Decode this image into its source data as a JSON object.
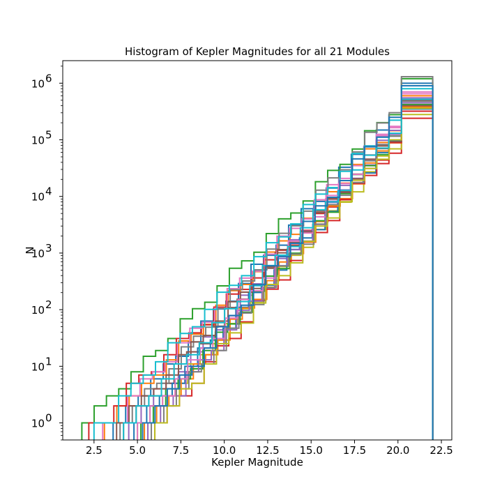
{
  "chart_data": {
    "type": "histogram-step",
    "title": "Histogram of Kepler Magnitudes for all 21 Modules",
    "xlabel": "Kepler Magnitude",
    "ylabel": "N",
    "xlim": [
      0.7,
      23.1
    ],
    "ylim": [
      0.5,
      2500000
    ],
    "yscale": "log",
    "grid": false,
    "legend": "none",
    "xticks": [
      2.5,
      5.0,
      7.5,
      10.0,
      12.5,
      15.0,
      17.5,
      20.0,
      22.5
    ],
    "xtick_labels": [
      "2.5",
      "5.0",
      "7.5",
      "10.0",
      "12.5",
      "15.0",
      "17.5",
      "20.0",
      "22.5"
    ],
    "yticks": [
      1,
      10,
      100,
      1000,
      10000,
      100000,
      1000000
    ],
    "ytick_mantissa": [
      "10",
      "10",
      "10",
      "10",
      "10",
      "10",
      "10"
    ],
    "ytick_exponent": [
      "0",
      "1",
      "2",
      "3",
      "4",
      "5",
      "6"
    ],
    "series": [
      {
        "color": "#1f77b4",
        "xmin": 3.6,
        "xmax": 22.0,
        "nmax": 1000000
      },
      {
        "color": "#ff7f0e",
        "xmin": 3.1,
        "xmax": 22.0,
        "nmax": 600000
      },
      {
        "color": "#2ca02c",
        "xmin": 1.8,
        "xmax": 22.0,
        "nmax": 1200000
      },
      {
        "color": "#d62728",
        "xmin": 2.2,
        "xmax": 22.0,
        "nmax": 240000
      },
      {
        "color": "#9467bd",
        "xmin": 4.5,
        "xmax": 22.0,
        "nmax": 450000
      },
      {
        "color": "#8c564b",
        "xmin": 4.2,
        "xmax": 22.0,
        "nmax": 500000
      },
      {
        "color": "#e377c2",
        "xmin": 3.0,
        "xmax": 22.0,
        "nmax": 700000
      },
      {
        "color": "#7f7f7f",
        "xmin": 4.0,
        "xmax": 22.0,
        "nmax": 1300000
      },
      {
        "color": "#bcbd22",
        "xmin": 5.0,
        "xmax": 22.0,
        "nmax": 280000
      },
      {
        "color": "#17becf",
        "xmin": 2.5,
        "xmax": 22.0,
        "nmax": 800000
      },
      {
        "color": "#1f77b4",
        "xmin": 4.8,
        "xmax": 22.0,
        "nmax": 350000
      },
      {
        "color": "#ff7f0e",
        "xmin": 5.4,
        "xmax": 22.0,
        "nmax": 380000
      },
      {
        "color": "#2ca02c",
        "xmin": 5.2,
        "xmax": 22.0,
        "nmax": 420000
      },
      {
        "color": "#d62728",
        "xmin": 6.0,
        "xmax": 22.0,
        "nmax": 320000
      },
      {
        "color": "#9467bd",
        "xmin": 5.6,
        "xmax": 22.0,
        "nmax": 550000
      },
      {
        "color": "#8c564b",
        "xmin": 3.8,
        "xmax": 22.0,
        "nmax": 400000
      },
      {
        "color": "#e377c2",
        "xmin": 5.0,
        "xmax": 22.0,
        "nmax": 650000
      },
      {
        "color": "#7f7f7f",
        "xmin": 5.8,
        "xmax": 22.0,
        "nmax": 480000
      },
      {
        "color": "#bcbd22",
        "xmin": 6.0,
        "xmax": 22.0,
        "nmax": 360000
      },
      {
        "color": "#17becf",
        "xmin": 4.2,
        "xmax": 22.0,
        "nmax": 520000
      },
      {
        "color": "#1f77b4",
        "xmin": 5.3,
        "xmax": 22.0,
        "nmax": 900000
      }
    ]
  }
}
